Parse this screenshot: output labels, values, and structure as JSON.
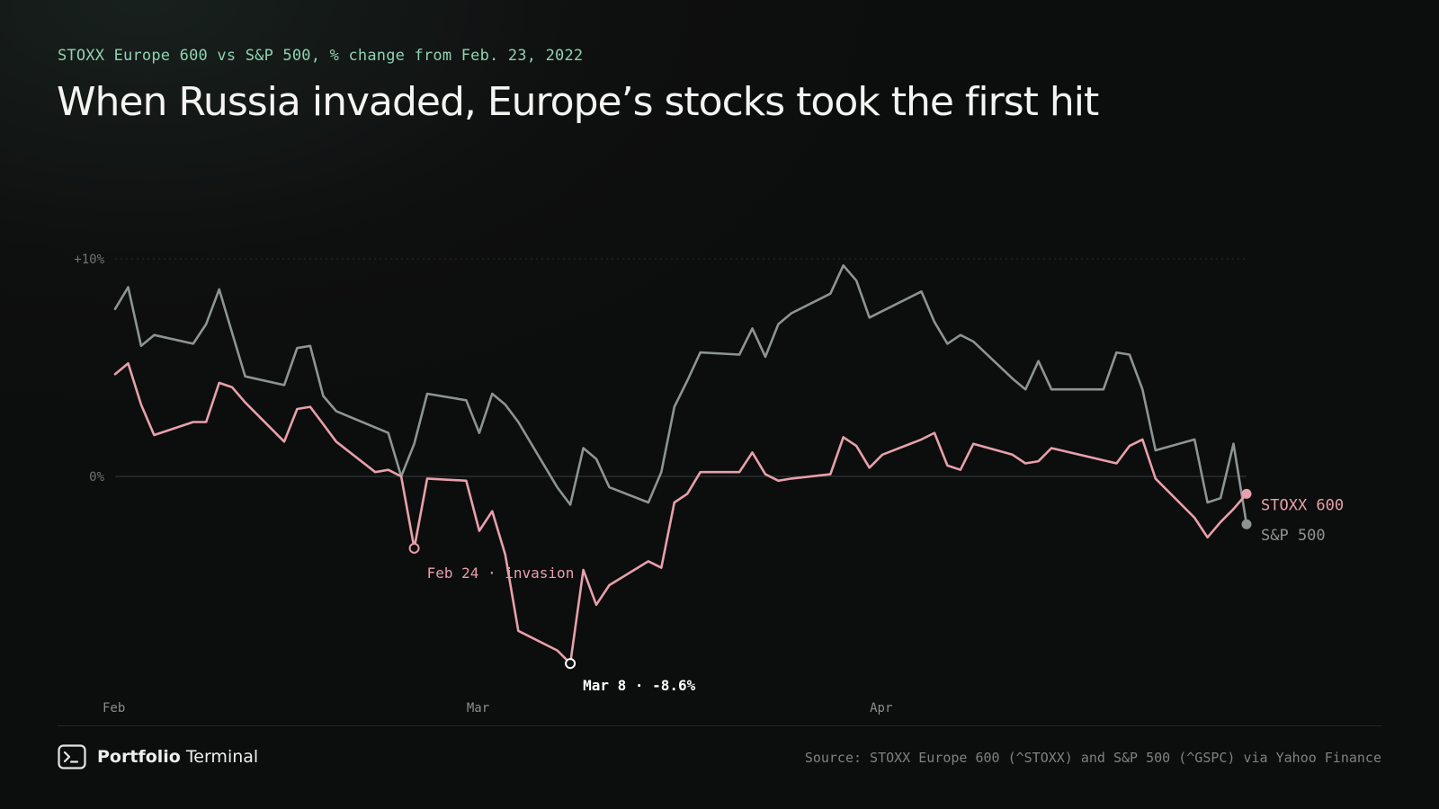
{
  "header": {
    "subtitle": "STOXX Europe 600 vs S&P 500, % change from Feb. 23, 2022",
    "title": "When Russia invaded, Europe’s stocks took the first hit"
  },
  "footer": {
    "brand_bold": "Portfolio",
    "brand_light": "Terminal",
    "brand_icon": "terminal-icon",
    "source": "Source: STOXX Europe 600 (^STOXX) and S&P 500 (^GSPC) via Yahoo Finance"
  },
  "colors": {
    "stoxx": "#e8a0ab",
    "sp500": "#8c9593",
    "subtitle": "#8fd3b2",
    "background": "#0e0f0f"
  },
  "chart_data": {
    "type": "line",
    "title": "When Russia invaded, Europe’s stocks took the first hit",
    "subtitle": "STOXX Europe 600 vs S&P 500, % change from Feb. 23, 2022",
    "y_unit": "%",
    "ylim": [
      -10,
      10
    ],
    "y_ticks": [
      {
        "value": 10,
        "label": "+10%"
      },
      {
        "value": 0,
        "label": "0%"
      }
    ],
    "x_ticks": [
      {
        "value": "2022-02-01",
        "label": "Feb"
      },
      {
        "value": "2022-03-01",
        "label": "Mar"
      },
      {
        "value": "2022-04-01",
        "label": "Apr"
      }
    ],
    "xlim": [
      "2022-02-01",
      "2022-04-29"
    ],
    "grid": "horizontal dashed at +10%, zero baseline",
    "legend": "direct labels at line ends (right)",
    "series": [
      {
        "name": "STOXX 600",
        "color": "#e8a0ab",
        "end_label": "STOXX 600",
        "points": [
          [
            "2022-02-01",
            4.7
          ],
          [
            "2022-02-02",
            5.2
          ],
          [
            "2022-02-03",
            3.3
          ],
          [
            "2022-02-04",
            1.9
          ],
          [
            "2022-02-07",
            2.5
          ],
          [
            "2022-02-08",
            2.5
          ],
          [
            "2022-02-09",
            4.3
          ],
          [
            "2022-02-10",
            4.1
          ],
          [
            "2022-02-11",
            3.4
          ],
          [
            "2022-02-14",
            1.6
          ],
          [
            "2022-02-15",
            3.1
          ],
          [
            "2022-02-16",
            3.2
          ],
          [
            "2022-02-17",
            2.4
          ],
          [
            "2022-02-18",
            1.6
          ],
          [
            "2022-02-21",
            0.2
          ],
          [
            "2022-02-22",
            0.3
          ],
          [
            "2022-02-23",
            0.0
          ],
          [
            "2022-02-24",
            -3.3
          ],
          [
            "2022-02-25",
            -0.1
          ],
          [
            "2022-02-28",
            -0.2
          ],
          [
            "2022-03-01",
            -2.5
          ],
          [
            "2022-03-02",
            -1.6
          ],
          [
            "2022-03-03",
            -3.6
          ],
          [
            "2022-03-04",
            -7.1
          ],
          [
            "2022-03-07",
            -8.0
          ],
          [
            "2022-03-08",
            -8.6
          ],
          [
            "2022-03-09",
            -4.3
          ],
          [
            "2022-03-10",
            -5.9
          ],
          [
            "2022-03-11",
            -5.0
          ],
          [
            "2022-03-14",
            -3.9
          ],
          [
            "2022-03-15",
            -4.2
          ],
          [
            "2022-03-16",
            -1.2
          ],
          [
            "2022-03-17",
            -0.8
          ],
          [
            "2022-03-18",
            0.2
          ],
          [
            "2022-03-21",
            0.2
          ],
          [
            "2022-03-22",
            1.1
          ],
          [
            "2022-03-23",
            0.1
          ],
          [
            "2022-03-24",
            -0.2
          ],
          [
            "2022-03-25",
            -0.1
          ],
          [
            "2022-03-28",
            0.1
          ],
          [
            "2022-03-29",
            1.8
          ],
          [
            "2022-03-30",
            1.4
          ],
          [
            "2022-03-31",
            0.4
          ],
          [
            "2022-04-01",
            1.0
          ],
          [
            "2022-04-04",
            1.7
          ],
          [
            "2022-04-05",
            2.0
          ],
          [
            "2022-04-06",
            0.5
          ],
          [
            "2022-04-07",
            0.3
          ],
          [
            "2022-04-08",
            1.5
          ],
          [
            "2022-04-11",
            1.0
          ],
          [
            "2022-04-12",
            0.6
          ],
          [
            "2022-04-13",
            0.7
          ],
          [
            "2022-04-14",
            1.3
          ],
          [
            "2022-04-19",
            0.6
          ],
          [
            "2022-04-20",
            1.4
          ],
          [
            "2022-04-21",
            1.7
          ],
          [
            "2022-04-22",
            -0.1
          ],
          [
            "2022-04-25",
            -1.9
          ],
          [
            "2022-04-26",
            -2.8
          ],
          [
            "2022-04-27",
            -2.1
          ],
          [
            "2022-04-28",
            -1.5
          ],
          [
            "2022-04-29",
            -0.8
          ]
        ]
      },
      {
        "name": "S&P 500",
        "color": "#8c9593",
        "end_label": "S&P 500",
        "points": [
          [
            "2022-02-01",
            7.7
          ],
          [
            "2022-02-02",
            8.7
          ],
          [
            "2022-02-03",
            6.0
          ],
          [
            "2022-02-04",
            6.5
          ],
          [
            "2022-02-07",
            6.1
          ],
          [
            "2022-02-08",
            7.0
          ],
          [
            "2022-02-09",
            8.6
          ],
          [
            "2022-02-10",
            6.6
          ],
          [
            "2022-02-11",
            4.6
          ],
          [
            "2022-02-14",
            4.2
          ],
          [
            "2022-02-15",
            5.9
          ],
          [
            "2022-02-16",
            6.0
          ],
          [
            "2022-02-17",
            3.7
          ],
          [
            "2022-02-18",
            3.0
          ],
          [
            "2022-02-22",
            2.0
          ],
          [
            "2022-02-23",
            0.0
          ],
          [
            "2022-02-24",
            1.5
          ],
          [
            "2022-02-25",
            3.8
          ],
          [
            "2022-02-28",
            3.5
          ],
          [
            "2022-03-01",
            2.0
          ],
          [
            "2022-03-02",
            3.8
          ],
          [
            "2022-03-03",
            3.3
          ],
          [
            "2022-03-04",
            2.5
          ],
          [
            "2022-03-07",
            -0.5
          ],
          [
            "2022-03-08",
            -1.3
          ],
          [
            "2022-03-09",
            1.3
          ],
          [
            "2022-03-10",
            0.8
          ],
          [
            "2022-03-11",
            -0.5
          ],
          [
            "2022-03-14",
            -1.2
          ],
          [
            "2022-03-15",
            0.2
          ],
          [
            "2022-03-16",
            3.2
          ],
          [
            "2022-03-17",
            4.4
          ],
          [
            "2022-03-18",
            5.7
          ],
          [
            "2022-03-21",
            5.6
          ],
          [
            "2022-03-22",
            6.8
          ],
          [
            "2022-03-23",
            5.5
          ],
          [
            "2022-03-24",
            7.0
          ],
          [
            "2022-03-25",
            7.5
          ],
          [
            "2022-03-28",
            8.4
          ],
          [
            "2022-03-29",
            9.7
          ],
          [
            "2022-03-30",
            9.0
          ],
          [
            "2022-03-31",
            7.3
          ],
          [
            "2022-04-01",
            7.6
          ],
          [
            "2022-04-04",
            8.5
          ],
          [
            "2022-04-05",
            7.1
          ],
          [
            "2022-04-06",
            6.1
          ],
          [
            "2022-04-07",
            6.5
          ],
          [
            "2022-04-08",
            6.2
          ],
          [
            "2022-04-11",
            4.5
          ],
          [
            "2022-04-12",
            4.0
          ],
          [
            "2022-04-13",
            5.3
          ],
          [
            "2022-04-14",
            4.0
          ],
          [
            "2022-04-18",
            4.0
          ],
          [
            "2022-04-19",
            5.7
          ],
          [
            "2022-04-20",
            5.6
          ],
          [
            "2022-04-21",
            4.0
          ],
          [
            "2022-04-22",
            1.2
          ],
          [
            "2022-04-25",
            1.7
          ],
          [
            "2022-04-26",
            -1.2
          ],
          [
            "2022-04-27",
            -1.0
          ],
          [
            "2022-04-28",
            1.5
          ],
          [
            "2022-04-29",
            -2.2
          ]
        ]
      }
    ],
    "annotations": [
      {
        "series": "STOXX 600",
        "x": "2022-02-24",
        "y": -3.3,
        "label": "Feb 24 · invasion",
        "color": "#e8a0ab"
      },
      {
        "series": "STOXX 600",
        "x": "2022-03-08",
        "y": -8.6,
        "label": "Mar 8 · -8.6%",
        "color": "#ffffff"
      }
    ]
  }
}
